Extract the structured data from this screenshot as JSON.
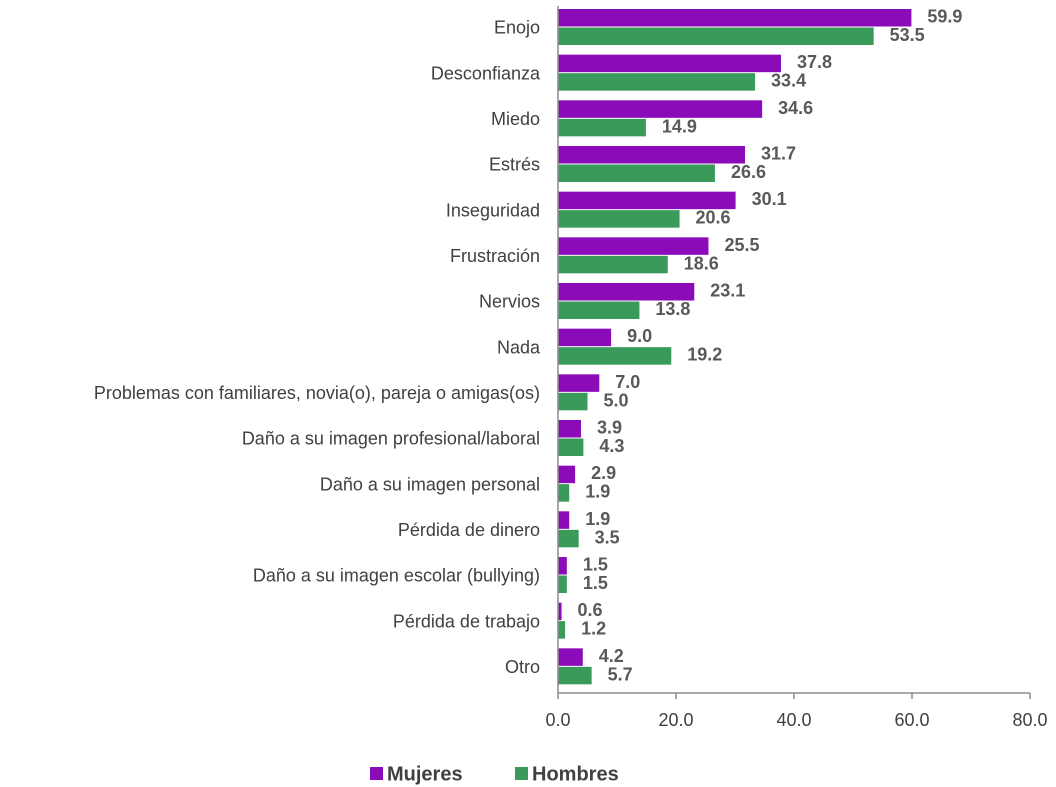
{
  "chart_data": {
    "type": "bar",
    "orientation": "horizontal",
    "categories": [
      "Enojo",
      "Desconfianza",
      "Miedo",
      "Estrés",
      "Inseguridad",
      "Frustración",
      "Nervios",
      "Nada",
      "Problemas con familiares, novia(o), pareja o amigas(os)",
      "Daño a su imagen profesional/laboral",
      "Daño a su imagen personal",
      "Pérdida de dinero",
      "Daño a su imagen escolar (bullying)",
      "Pérdida de trabajo",
      "Otro"
    ],
    "series": [
      {
        "name": "Mujeres",
        "color": "#8b0bb8",
        "values": [
          59.9,
          37.8,
          34.6,
          31.7,
          30.1,
          25.5,
          23.1,
          9.0,
          7.0,
          3.9,
          2.9,
          1.9,
          1.5,
          0.6,
          4.2
        ],
        "value_labels": [
          "59.9",
          "37.8",
          "34.6",
          "31.7",
          "30.1",
          "25.5",
          "23.1",
          "9.0",
          "7.0",
          "3.9",
          "2.9",
          "1.9",
          "1.5",
          "0.6",
          "4.2"
        ]
      },
      {
        "name": "Hombres",
        "color": "#3a9a5a",
        "values": [
          53.5,
          33.4,
          14.9,
          26.6,
          20.6,
          18.6,
          13.8,
          19.2,
          5.0,
          4.3,
          1.9,
          3.5,
          1.5,
          1.2,
          5.7
        ],
        "value_labels": [
          "53.5",
          "33.4",
          "14.9",
          "26.6",
          "20.6",
          "18.6",
          "13.8",
          "19.2",
          "5.0",
          "4.3",
          "1.9",
          "3.5",
          "1.5",
          "1.2",
          "5.7"
        ]
      }
    ],
    "xlim": [
      0,
      80
    ],
    "xticks": [
      {
        "value": 0,
        "label": "0.0"
      },
      {
        "value": 20,
        "label": "20.0"
      },
      {
        "value": 40,
        "label": "40.0"
      },
      {
        "value": 60,
        "label": "60.0"
      },
      {
        "value": 80,
        "label": "80.0"
      }
    ],
    "legend": "bottom"
  }
}
